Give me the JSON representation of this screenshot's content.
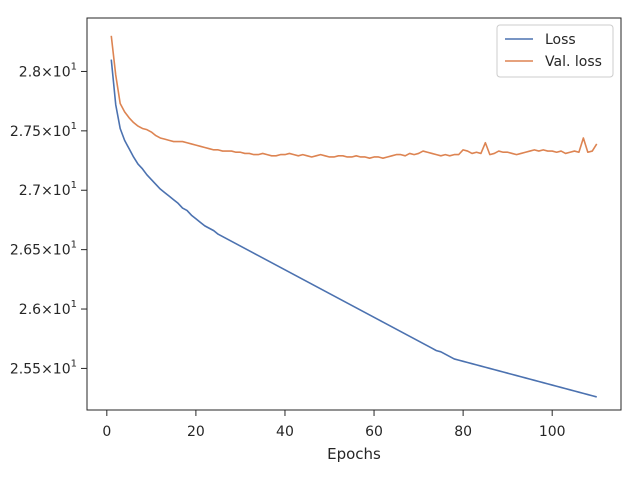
{
  "chart_data": {
    "type": "line",
    "title": "",
    "xlabel": "Epochs",
    "ylabel": "",
    "xlim": [
      -4.45,
      115.45
    ],
    "ylim": [
      25.15,
      28.45
    ],
    "x_ticks": [
      0,
      20,
      40,
      60,
      80,
      100
    ],
    "y_ticks": [
      {
        "value": 25.5,
        "mantissa": "2.55",
        "base": "10",
        "exp": "1"
      },
      {
        "value": 26.0,
        "mantissa": "2.6",
        "base": "10",
        "exp": "1"
      },
      {
        "value": 26.5,
        "mantissa": "2.65",
        "base": "10",
        "exp": "1"
      },
      {
        "value": 27.0,
        "mantissa": "2.7",
        "base": "10",
        "exp": "1"
      },
      {
        "value": 27.5,
        "mantissa": "2.75",
        "base": "10",
        "exp": "1"
      },
      {
        "value": 28.0,
        "mantissa": "2.8",
        "base": "10",
        "exp": "1"
      }
    ],
    "grid": false,
    "legend": "top-right",
    "x": [
      1,
      2,
      3,
      4,
      5,
      6,
      7,
      8,
      9,
      10,
      11,
      12,
      13,
      14,
      15,
      16,
      17,
      18,
      19,
      20,
      21,
      22,
      23,
      24,
      25,
      26,
      27,
      28,
      29,
      30,
      31,
      32,
      33,
      34,
      35,
      36,
      37,
      38,
      39,
      40,
      41,
      42,
      43,
      44,
      45,
      46,
      47,
      48,
      49,
      50,
      51,
      52,
      53,
      54,
      55,
      56,
      57,
      58,
      59,
      60,
      61,
      62,
      63,
      64,
      65,
      66,
      67,
      68,
      69,
      70,
      71,
      72,
      73,
      74,
      75,
      76,
      77,
      78,
      79,
      80,
      81,
      82,
      83,
      84,
      85,
      86,
      87,
      88,
      89,
      90,
      91,
      92,
      93,
      94,
      95,
      96,
      97,
      98,
      99,
      100,
      101,
      102,
      103,
      104,
      105,
      106,
      107,
      108,
      109,
      110
    ],
    "series": [
      {
        "name": "Loss",
        "color": "#4c72b0",
        "values": [
          28.1,
          27.72,
          27.52,
          27.42,
          27.35,
          27.28,
          27.22,
          27.18,
          27.13,
          27.09,
          27.05,
          27.01,
          26.98,
          26.95,
          26.92,
          26.89,
          26.85,
          26.83,
          26.79,
          26.76,
          26.73,
          26.7,
          26.68,
          26.66,
          26.63,
          26.61,
          26.59,
          26.57,
          26.55,
          26.53,
          26.51,
          26.49,
          26.47,
          26.45,
          26.43,
          26.41,
          26.39,
          26.37,
          26.35,
          26.33,
          26.31,
          26.29,
          26.27,
          26.25,
          26.23,
          26.21,
          26.19,
          26.17,
          26.15,
          26.13,
          26.11,
          26.09,
          26.07,
          26.05,
          26.03,
          26.01,
          25.99,
          25.97,
          25.95,
          25.93,
          25.91,
          25.89,
          25.87,
          25.85,
          25.83,
          25.81,
          25.79,
          25.77,
          25.75,
          25.73,
          25.71,
          25.69,
          25.67,
          25.65,
          25.64,
          25.62,
          25.6,
          25.58,
          25.57,
          25.56,
          25.55,
          25.54,
          25.53,
          25.52,
          25.51,
          25.5,
          25.49,
          25.48,
          25.47,
          25.46,
          25.45,
          25.44,
          25.43,
          25.42,
          25.41,
          25.4,
          25.39,
          25.38,
          25.37,
          25.36,
          25.35,
          25.34,
          25.33,
          25.32,
          25.31,
          25.3,
          25.29,
          25.28,
          25.27,
          25.26
        ]
      },
      {
        "name": "Val. loss",
        "color": "#dd8452",
        "values": [
          28.3,
          27.97,
          27.73,
          27.66,
          27.61,
          27.57,
          27.54,
          27.52,
          27.51,
          27.49,
          27.46,
          27.44,
          27.43,
          27.42,
          27.41,
          27.41,
          27.41,
          27.4,
          27.39,
          27.38,
          27.37,
          27.36,
          27.35,
          27.34,
          27.34,
          27.33,
          27.33,
          27.33,
          27.32,
          27.32,
          27.31,
          27.31,
          27.3,
          27.3,
          27.31,
          27.3,
          27.29,
          27.29,
          27.3,
          27.3,
          27.31,
          27.3,
          27.29,
          27.3,
          27.29,
          27.28,
          27.29,
          27.3,
          27.29,
          27.28,
          27.28,
          27.29,
          27.29,
          27.28,
          27.28,
          27.29,
          27.28,
          27.28,
          27.27,
          27.28,
          27.28,
          27.27,
          27.28,
          27.29,
          27.3,
          27.3,
          27.29,
          27.31,
          27.3,
          27.31,
          27.33,
          27.32,
          27.31,
          27.3,
          27.29,
          27.3,
          27.29,
          27.3,
          27.3,
          27.34,
          27.33,
          27.31,
          27.32,
          27.31,
          27.4,
          27.3,
          27.31,
          27.33,
          27.32,
          27.32,
          27.31,
          27.3,
          27.31,
          27.32,
          27.33,
          27.34,
          27.33,
          27.34,
          27.33,
          27.33,
          27.32,
          27.33,
          27.31,
          27.32,
          27.33,
          27.32,
          27.44,
          27.32,
          27.33,
          27.39
        ]
      }
    ]
  }
}
